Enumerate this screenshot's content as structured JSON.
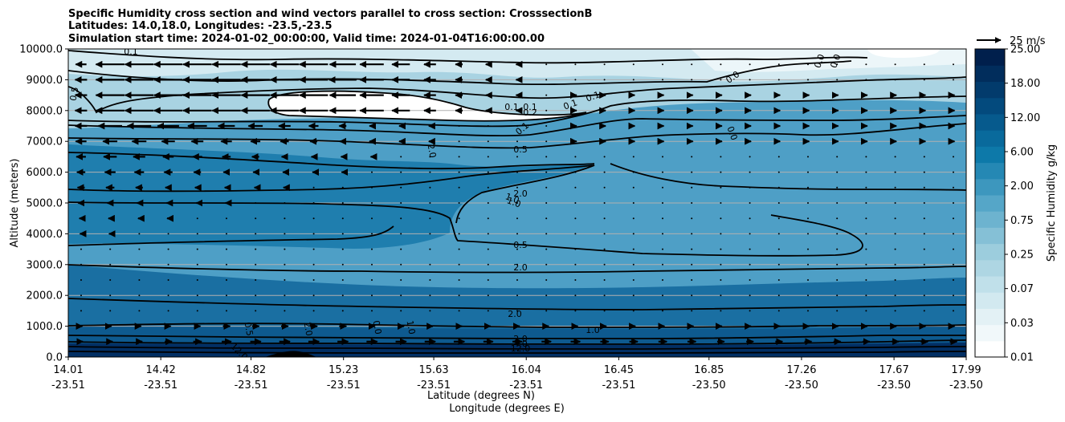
{
  "chart_data": {
    "type": "contourf-cross-section",
    "title_lines": [
      "Specific Humidity cross section and wind vectors parallel to cross section: CrosssectionB",
      "Latitudes: 14.0,18.0, Longitudes: -23.5,-23.5",
      "Simulation start time: 2024-01-02_00:00:00, Valid time: 2024-01-04T16:00:00.00"
    ],
    "ylabel": "Altitude (meters)",
    "xlabel_lat": "Latitude (degrees N)",
    "xlabel_lon": "Longitude (degrees E)",
    "ylim": [
      0,
      10000
    ],
    "xlim": [
      14.01,
      17.99
    ],
    "y_ticks": [
      "0.0",
      "1000.0",
      "2000.0",
      "3000.0",
      "4000.0",
      "5000.0",
      "6000.0",
      "7000.0",
      "8000.0",
      "9000.0",
      "10000.0"
    ],
    "x_ticks": [
      {
        "lat": "14.01",
        "lon": "-23.51"
      },
      {
        "lat": "14.42",
        "lon": "-23.51"
      },
      {
        "lat": "14.82",
        "lon": "-23.51"
      },
      {
        "lat": "15.23",
        "lon": "-23.51"
      },
      {
        "lat": "15.63",
        "lon": "-23.51"
      },
      {
        "lat": "16.04",
        "lon": "-23.51"
      },
      {
        "lat": "16.45",
        "lon": "-23.51"
      },
      {
        "lat": "16.85",
        "lon": "-23.50"
      },
      {
        "lat": "17.26",
        "lon": "-23.50"
      },
      {
        "lat": "17.67",
        "lon": "-23.50"
      },
      {
        "lat": "17.99",
        "lon": "-23.50"
      }
    ],
    "colorbar": {
      "label": "Specific Humidity g/kg",
      "tick_labels": [
        "0.01",
        "0.03",
        "0.07",
        "0.25",
        "0.75",
        "2.00",
        "6.00",
        "12.00",
        "18.00",
        "25.00"
      ],
      "levels": [
        0.01,
        0.02,
        0.03,
        0.05,
        0.07,
        0.1,
        0.25,
        0.5,
        0.75,
        1,
        2,
        3,
        6,
        9,
        12,
        15,
        18,
        21,
        25
      ],
      "colors": [
        "#ffffff",
        "#f1f8fa",
        "#e3f1f5",
        "#d2e9f0",
        "#c0e0ea",
        "#aed6e3",
        "#9ccddd",
        "#85c0d6",
        "#6db3cf",
        "#55a6c8",
        "#3d97be",
        "#2588b4",
        "#0d79a9",
        "#096a9c",
        "#065a8d",
        "#034a7d",
        "#023b6c",
        "#012d5c",
        "#001f4c"
      ]
    },
    "contour_labels": [
      "0.1",
      "0.5",
      "0.0",
      "0.0",
      "0.0",
      "0.1",
      "0.2",
      "0.1",
      "0.0",
      "0.5",
      "2.0",
      "2.0",
      "1.0",
      "1.0",
      "0.5",
      "2.0",
      "2.0",
      "1.0",
      "2.0",
      "1.0",
      "4.0",
      "12.0",
      "0.0",
      "0.5",
      "2.0",
      "12.0",
      "0.1",
      "0.1",
      "0.1"
    ],
    "quiver_key": "25 m/s",
    "wind_rows": [
      {
        "alt": 9500,
        "u": [
          -0.36,
          -0.96,
          -0.96,
          -0.96,
          -0.96,
          -0.96,
          -0.96,
          -0.96,
          -0.96,
          -0.88,
          -0.8,
          -0.6,
          -0.4,
          -0.24,
          -0.16,
          -0.08,
          -0.04,
          -0.04,
          -0.04,
          -0.04,
          -0.04,
          -0.04,
          -0.04,
          -0.04,
          -0.04,
          -0.04,
          -0.04,
          -0.04,
          -0.04,
          -0.04,
          -0.04
        ]
      },
      {
        "alt": 9000,
        "u": [
          -0.4,
          -0.96,
          -0.96,
          -0.96,
          -0.96,
          -0.96,
          -0.96,
          -0.96,
          -0.96,
          -0.92,
          -0.8,
          -0.6,
          -0.4,
          -0.24,
          -0.16,
          -0.08,
          -0.04,
          -0.04,
          -0.04,
          -0.04,
          -0.04,
          -0.04,
          -0.04,
          -0.04,
          -0.04,
          -0.04,
          -0.04,
          -0.04,
          -0.04,
          -0.04,
          -0.04
        ]
      },
      {
        "alt": 8500,
        "u": [
          -0.4,
          -0.96,
          -0.96,
          -0.96,
          -0.96,
          -0.96,
          -0.96,
          -0.96,
          -0.96,
          -0.88,
          -0.8,
          -0.6,
          -0.4,
          -0.24,
          -0.16,
          -0.08,
          0.04,
          0.08,
          0.08,
          0.08,
          0.08,
          0.08,
          0.08,
          0.08,
          0.08,
          0.08,
          0.08,
          0.08,
          0.08,
          0.08,
          0.08
        ]
      },
      {
        "alt": 8000,
        "u": [
          -0.4,
          -0.96,
          -0.96,
          -0.96,
          -0.96,
          -0.96,
          -0.96,
          -0.96,
          -0.96,
          -0.88,
          -0.8,
          -0.6,
          -0.4,
          -0.24,
          -0.16,
          -0.08,
          0.04,
          0.08,
          0.08,
          0.08,
          0.08,
          0.08,
          0.08,
          0.08,
          0.08,
          0.08,
          0.08,
          0.08,
          0.08,
          0.08,
          0.08
        ]
      },
      {
        "alt": 7500,
        "u": [
          -0.4,
          -0.8,
          -0.8,
          -0.72,
          -0.64,
          -0.56,
          -0.48,
          -0.4,
          -0.32,
          -0.24,
          -0.16,
          -0.12,
          -0.08,
          -0.04,
          -0.04,
          -0.04,
          0.04,
          0.08,
          0.08,
          0.08,
          0.08,
          0.08,
          0.08,
          0.08,
          0.08,
          0.08,
          0.08,
          0.08,
          0.08,
          0.08,
          0.08
        ]
      },
      {
        "alt": 7000,
        "u": [
          -0.36,
          -0.48,
          -0.48,
          -0.44,
          -0.4,
          -0.36,
          -0.32,
          -0.28,
          -0.24,
          -0.2,
          -0.16,
          -0.12,
          -0.08,
          -0.04,
          -0.04,
          -0.04,
          0.04,
          0.08,
          0.08,
          0.08,
          0.08,
          0.08,
          0.08,
          0.08,
          0.08,
          0.08,
          0.08,
          0.08,
          0.08,
          0.08,
          0.08
        ]
      },
      {
        "alt": 6500,
        "u": [
          -0.32,
          -0.44,
          -0.4,
          -0.36,
          -0.32,
          -0.28,
          -0.24,
          -0.2,
          -0.16,
          -0.12,
          -0.08,
          -0.04,
          -0.04,
          -0.04,
          -0.04,
          -0.04,
          0.04,
          0.04,
          0.04,
          0.04,
          0.04,
          0.04,
          0.04,
          0.04,
          0.04,
          0.04,
          0.04,
          0.04,
          0.04,
          0.04,
          0.04
        ]
      },
      {
        "alt": 6000,
        "u": [
          -0.28,
          -0.36,
          -0.32,
          -0.28,
          -0.24,
          -0.2,
          -0.16,
          -0.12,
          -0.08,
          -0.08,
          -0.04,
          -0.04,
          -0.04,
          -0.04,
          -0.04,
          -0.04,
          0.04,
          0.04,
          0.04,
          0.04,
          0.04,
          0.04,
          0.04,
          0.04,
          0.04,
          0.04,
          0.04,
          0.04,
          0.04,
          0.04,
          0.04
        ]
      },
      {
        "alt": 5500,
        "u": [
          -0.24,
          -0.28,
          -0.24,
          -0.2,
          -0.16,
          -0.12,
          -0.08,
          -0.08,
          -0.04,
          -0.04,
          -0.04,
          -0.04,
          -0.04,
          -0.04,
          -0.04,
          -0.04,
          0.04,
          0.04,
          0.04,
          0.04,
          0.04,
          0.04,
          0.04,
          0.04,
          0.04,
          0.04,
          0.04,
          0.04,
          0.04,
          0.04,
          0.04
        ]
      },
      {
        "alt": 5000,
        "u": [
          -0.2,
          -0.2,
          -0.16,
          -0.12,
          -0.08,
          -0.08,
          -0.04,
          -0.04,
          -0.04,
          -0.04,
          -0.04,
          -0.04,
          -0.04,
          -0.04,
          -0.04,
          -0.04,
          0.04,
          0.04,
          0.04,
          0.04,
          0.04,
          0.04,
          0.04,
          0.04,
          0.04,
          0.04,
          0.04,
          0.04,
          0.04,
          0.04,
          0.04
        ]
      },
      {
        "alt": 4500,
        "u": [
          -0.12,
          -0.12,
          -0.08,
          -0.08,
          -0.04,
          -0.04,
          -0.04,
          -0.04,
          -0.04,
          -0.04,
          -0.04,
          -0.04,
          -0.04,
          -0.04,
          -0.04,
          -0.04,
          0.04,
          0.04,
          0.04,
          0.04,
          0.04,
          0.04,
          0.04,
          0.04,
          0.04,
          0.04,
          0.04,
          0.04,
          0.04,
          0.04,
          0.04
        ]
      },
      {
        "alt": 4000,
        "u": [
          -0.08,
          -0.08,
          -0.04,
          -0.04,
          -0.04,
          -0.04,
          -0.04,
          -0.04,
          -0.04,
          -0.04,
          -0.04,
          -0.04,
          -0.04,
          -0.04,
          -0.04,
          -0.04,
          0.04,
          0.04,
          0.04,
          0.04,
          0.04,
          0.04,
          0.04,
          0.04,
          0.04,
          0.04,
          0.04,
          0.04,
          0.04,
          0.04,
          0.04
        ]
      },
      {
        "alt": 3500,
        "u": [
          -0.04,
          -0.04,
          -0.04,
          -0.04,
          -0.04,
          -0.04,
          -0.04,
          -0.04,
          -0.04,
          -0.04,
          -0.04,
          -0.04,
          -0.04,
          -0.04,
          -0.04,
          -0.04,
          0.04,
          0.04,
          0.04,
          0.04,
          0.04,
          0.04,
          0.04,
          0.04,
          0.04,
          0.04,
          0.04,
          0.04,
          0.04,
          0.04,
          0.04
        ]
      },
      {
        "alt": 3000,
        "u": [
          -0.04,
          -0.04,
          -0.04,
          -0.04,
          -0.04,
          -0.04,
          -0.04,
          -0.04,
          -0.04,
          -0.04,
          -0.04,
          -0.04,
          -0.04,
          -0.04,
          -0.04,
          -0.04,
          0.04,
          0.04,
          0.04,
          0.04,
          0.04,
          0.04,
          0.04,
          0.04,
          0.04,
          0.04,
          0.04,
          0.04,
          0.04,
          0.04,
          0.04
        ]
      },
      {
        "alt": 2500,
        "u": [
          0.04,
          0.04,
          0.04,
          0.04,
          0.04,
          0.04,
          0.04,
          0.04,
          0.04,
          0.04,
          0.04,
          0.04,
          0.04,
          0.04,
          0.04,
          0.04,
          0.04,
          0.04,
          0.04,
          0.04,
          0.04,
          0.04,
          0.04,
          0.04,
          0.04,
          0.04,
          0.04,
          0.04,
          0.04,
          0.04,
          0.04
        ]
      },
      {
        "alt": 2000,
        "u": [
          0.04,
          0.04,
          0.04,
          0.04,
          0.04,
          0.04,
          0.04,
          0.04,
          0.04,
          0.04,
          0.04,
          0.04,
          0.04,
          0.04,
          0.04,
          0.04,
          0.04,
          0.04,
          0.04,
          0.04,
          0.04,
          0.04,
          0.04,
          0.04,
          0.04,
          0.04,
          0.04,
          0.04,
          0.04,
          0.04,
          0.04
        ]
      },
      {
        "alt": 1500,
        "u": [
          0.04,
          0.04,
          0.04,
          0.04,
          0.04,
          0.04,
          0.04,
          0.04,
          0.04,
          0.04,
          0.04,
          0.04,
          0.04,
          0.04,
          0.04,
          0.04,
          0.04,
          0.04,
          0.04,
          0.04,
          0.04,
          0.04,
          0.04,
          0.04,
          0.04,
          0.04,
          0.04,
          0.04,
          0.04,
          0.04,
          0.04
        ]
      },
      {
        "alt": 1000,
        "u": [
          0.08,
          0.08,
          0.12,
          0.16,
          0.2,
          0.24,
          0.24,
          0.24,
          0.24,
          0.24,
          0.2,
          0.2,
          0.2,
          0.2,
          0.16,
          0.16,
          0.16,
          0.16,
          0.12,
          0.12,
          0.12,
          0.12,
          0.08,
          0.08,
          0.08,
          0.08,
          0.08,
          0.08,
          0.08,
          0.08,
          0.08
        ]
      },
      {
        "alt": 500,
        "u": [
          0.12,
          0.16,
          0.2,
          0.24,
          0.28,
          0.32,
          0.36,
          0.36,
          0.36,
          0.36,
          0.36,
          0.36,
          0.36,
          0.36,
          0.32,
          0.32,
          0.32,
          0.32,
          0.28,
          0.28,
          0.28,
          0.28,
          0.24,
          0.24,
          0.24,
          0.24,
          0.24,
          0.24,
          0.24,
          0.24,
          0.24
        ]
      }
    ]
  }
}
